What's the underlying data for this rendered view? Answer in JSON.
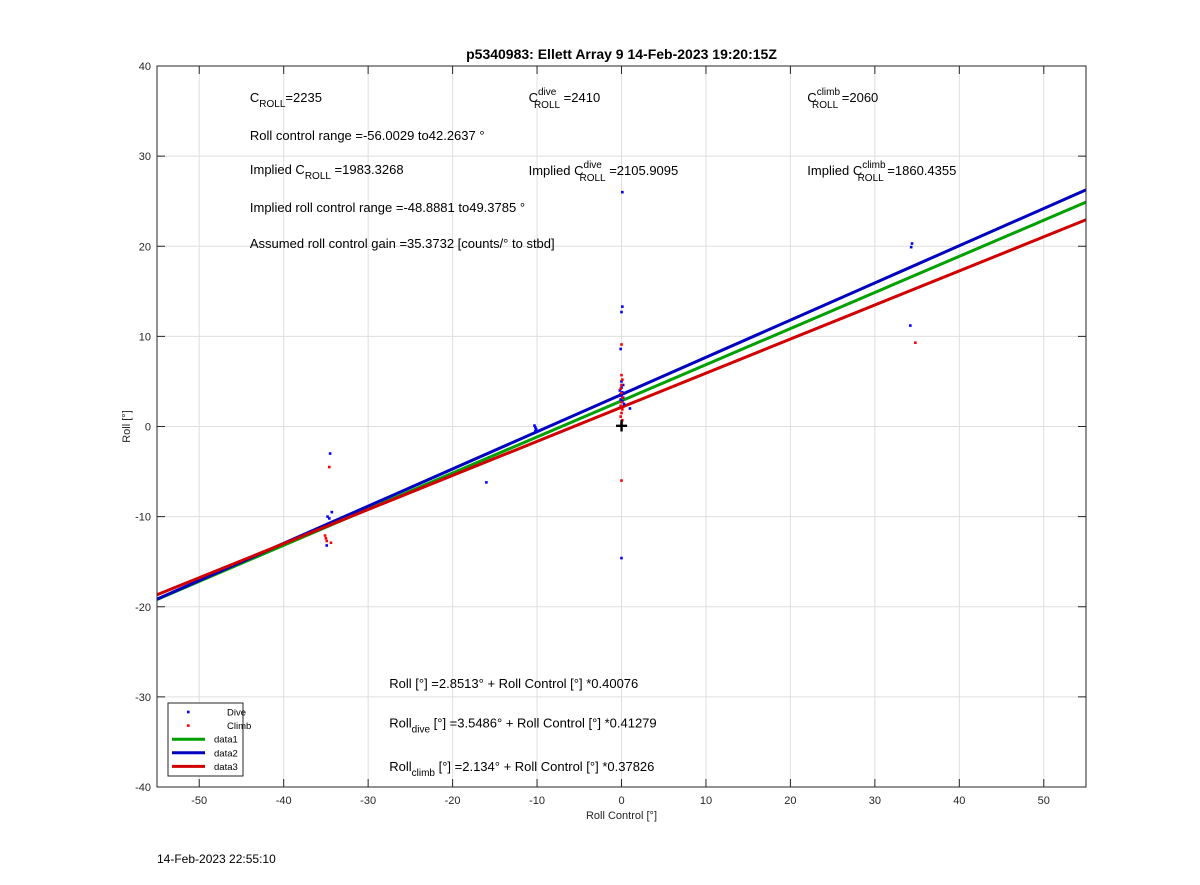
{
  "chart_data": {
    "type": "scatter",
    "title": "p5340983: Ellett Array 9 14-Feb-2023 19:20:15Z",
    "xlabel": "Roll Control [°]",
    "ylabel": "Roll [°]",
    "xlim": [
      -55,
      55
    ],
    "ylim": [
      -40,
      40
    ],
    "xticks": [
      -50,
      -40,
      -30,
      -20,
      -10,
      0,
      10,
      20,
      30,
      40,
      50
    ],
    "yticks": [
      -40,
      -30,
      -20,
      -10,
      0,
      10,
      20,
      30,
      40
    ],
    "grid": true,
    "legend_location": "bottom-left",
    "series": [
      {
        "name": "Dive",
        "kind": "points",
        "color": "#0000ff",
        "points": [
          [
            -34.5,
            -3
          ],
          [
            -34.3,
            -9.5
          ],
          [
            -34.8,
            -10
          ],
          [
            -34.6,
            -10.2
          ],
          [
            -34.9,
            -13.2
          ],
          [
            -16,
            -6.2
          ],
          [
            -10.2,
            -0.1
          ],
          [
            -10.2,
            -0.5
          ],
          [
            -10.3,
            0.1
          ],
          [
            -10.1,
            -0.3
          ],
          [
            0.1,
            26
          ],
          [
            0.1,
            13.3
          ],
          [
            0,
            12.7
          ],
          [
            -0.1,
            8.6
          ],
          [
            0,
            5
          ],
          [
            0.2,
            4.6
          ],
          [
            0,
            4.3
          ],
          [
            -0.2,
            4.0
          ],
          [
            0.1,
            3.8
          ],
          [
            -0.1,
            3.6
          ],
          [
            0,
            3.4
          ],
          [
            0.2,
            3.2
          ],
          [
            -0.1,
            3.0
          ],
          [
            0.1,
            2.8
          ],
          [
            0.3,
            2.5
          ],
          [
            1.0,
            2.0
          ],
          [
            0,
            -14.6
          ],
          [
            34.4,
            20.3
          ],
          [
            34.3,
            19.9
          ],
          [
            34.2,
            11.2
          ]
        ]
      },
      {
        "name": "Climb",
        "kind": "points",
        "color": "#ff0000",
        "points": [
          [
            -34.6,
            -4.5
          ],
          [
            -35.1,
            -12.1
          ],
          [
            -35.0,
            -12.4
          ],
          [
            -34.9,
            -12.7
          ],
          [
            -34.4,
            -12.9
          ],
          [
            0,
            9.1
          ],
          [
            0,
            5.7
          ],
          [
            0.1,
            5.2
          ],
          [
            0,
            4.6
          ],
          [
            -0.1,
            4.2
          ],
          [
            0,
            3.7
          ],
          [
            0.1,
            3.2
          ],
          [
            0,
            2.7
          ],
          [
            -0.1,
            2.3
          ],
          [
            0.1,
            1.9
          ],
          [
            0,
            1.5
          ],
          [
            -0.1,
            1.1
          ],
          [
            0.1,
            0.7
          ],
          [
            0,
            0.3
          ],
          [
            0,
            -6
          ],
          [
            34.8,
            9.3
          ]
        ]
      },
      {
        "name": "data1",
        "kind": "line",
        "color": "#00a000",
        "intercept": 2.8513,
        "slope": 0.40076
      },
      {
        "name": "data2",
        "kind": "line",
        "color": "#0000bf",
        "intercept": 3.5486,
        "slope": 0.41279
      },
      {
        "name": "data3",
        "kind": "line",
        "color": "#d00000",
        "intercept": 2.134,
        "slope": 0.37826
      }
    ],
    "marker": {
      "label": "+",
      "x": 0,
      "y": 0
    },
    "annotations": [
      {
        "base": "C",
        "sub": "ROLL",
        "sup": "",
        "pre": "",
        "text": "=2235",
        "x": -44,
        "y": 36
      },
      {
        "base": "C",
        "sub": "ROLL",
        "sup": "dive",
        "pre": "",
        "text": " =2410",
        "x": -11,
        "y": 36
      },
      {
        "base": "C",
        "sub": "ROLL",
        "sup": "climb",
        "pre": "",
        "text": " =2060",
        "x": 22,
        "y": 36
      },
      {
        "base": "",
        "sub": "",
        "sup": "",
        "pre": "",
        "text": "Roll control range =-56.0029 to42.2637 °",
        "x": -44,
        "y": 31.8
      },
      {
        "base": "C",
        "sub": "ROLL",
        "sup": "",
        "pre": "Implied ",
        "text": " =1983.3268",
        "x": -44,
        "y": 28
      },
      {
        "base": "C",
        "sub": "ROLL",
        "sup": "dive",
        "pre": "Implied ",
        "text": " =2105.9095",
        "x": -11,
        "y": 27.9
      },
      {
        "base": "C",
        "sub": "ROLL",
        "sup": "climb",
        "pre": "Implied ",
        "text": " =1860.4355",
        "x": 22,
        "y": 27.9
      },
      {
        "base": "",
        "sub": "",
        "sup": "",
        "pre": "",
        "text": "Implied roll control range =-48.8881 to49.3785 °",
        "x": -44,
        "y": 23.8
      },
      {
        "base": "",
        "sub": "",
        "sup": "",
        "pre": "",
        "text": "Assumed roll control gain =35.3732 [counts/° to stbd]",
        "x": -44,
        "y": 19.8
      },
      {
        "base": "",
        "sub": "",
        "sup": "",
        "pre": "",
        "text": "Roll [°] =2.8513° + Roll Control [°] *0.40076",
        "x": -27.5,
        "y": -29
      },
      {
        "base": "Roll",
        "sub": "dive",
        "sup": "",
        "pre": "",
        "text": " [°] =3.5486° + Roll Control [°] *0.41279",
        "x": -27.5,
        "y": -33.4
      },
      {
        "base": "Roll",
        "sub": "climb",
        "sup": "",
        "pre": "",
        "text": " [°] =2.134° + Roll Control [°] *0.37826",
        "x": -27.5,
        "y": -38.2
      }
    ]
  },
  "footer": {
    "timestamp": "14-Feb-2023 22:55:10"
  }
}
